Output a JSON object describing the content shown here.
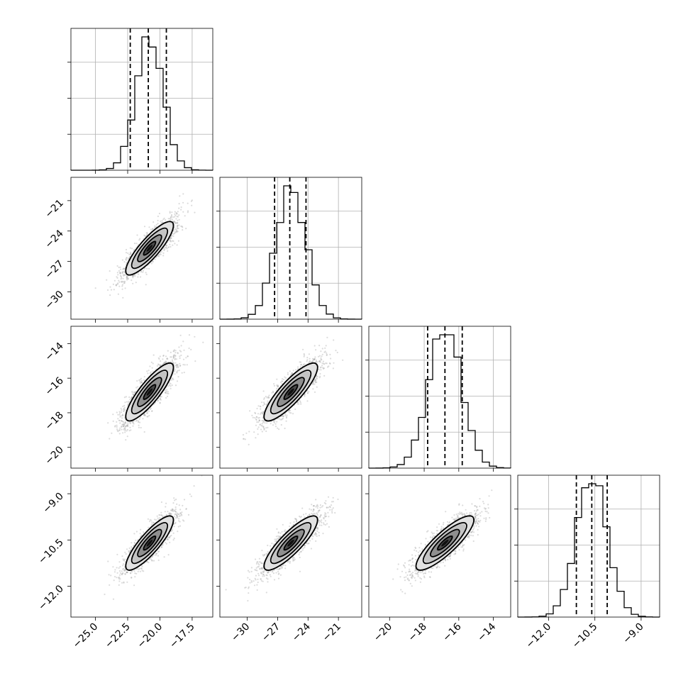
{
  "chart_data": {
    "type": "corner",
    "parameters": [
      {
        "mean": -20.8,
        "std": 1.05,
        "ticks": [
          -25.0,
          -22.5,
          -20.0,
          -17.5
        ],
        "tick_labels": [
          "−25.0",
          "−22.5",
          "−20.0",
          "−17.5"
        ],
        "range": [
          -26.9,
          -15.9
        ],
        "quantiles": [
          -22.3,
          -20.9,
          -19.5
        ]
      },
      {
        "mean": -25.7,
        "std": 1.5,
        "ticks": [
          -30,
          -27,
          -24,
          -21
        ],
        "tick_labels": [
          "−30",
          "−27",
          "−24",
          "−21"
        ],
        "range": [
          -32.7,
          -18.7
        ],
        "quantiles": [
          -27.3,
          -25.8,
          -24.2
        ]
      },
      {
        "mean": -16.8,
        "std": 0.95,
        "ticks": [
          -20,
          -18,
          -16,
          -14
        ],
        "tick_labels": [
          "−20",
          "−18",
          "−16",
          "−14"
        ],
        "range": [
          -21.2,
          -13.0
        ],
        "quantiles": [
          -17.8,
          -16.8,
          -15.8
        ]
      },
      {
        "mean": -10.6,
        "std": 0.5,
        "ticks": [
          -12.0,
          -10.5,
          -9.0
        ],
        "tick_labels": [
          "−12.0",
          "−10.5",
          "−9.0"
        ],
        "range": [
          -13.0,
          -8.4
        ],
        "quantiles": [
          -11.1,
          -10.6,
          -10.1
        ]
      }
    ],
    "correlation": 0.85,
    "contour_levels_sigma": [
      0.5,
      1.0,
      1.5,
      2.0
    ],
    "grid": true
  }
}
